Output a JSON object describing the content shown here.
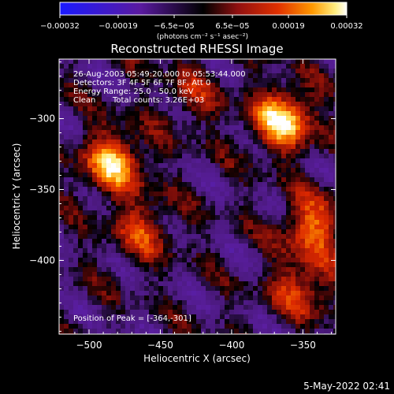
{
  "chart_data": {
    "type": "heatmap",
    "title": "Reconstructed RHESSI Image",
    "xlabel": "Heliocentric X (arcsec)",
    "ylabel": "Heliocentric Y (arcsec)",
    "xlim": [
      -521,
      -327
    ],
    "ylim": [
      -452,
      -258
    ],
    "xticks": [
      -500,
      -450,
      -400,
      -350
    ],
    "yticks": [
      -400,
      -350,
      -300
    ],
    "x_tick_labels": [
      "−500",
      "−450",
      "−400",
      "−350"
    ],
    "y_tick_labels": [
      "−400",
      "−350",
      "−300"
    ],
    "colorbar": {
      "range": [
        -0.00032,
        0.00032
      ],
      "tick_values": [
        -0.00032,
        -0.00019,
        -6.5e-05,
        6.5e-05,
        0.00019,
        0.00032
      ],
      "tick_labels": [
        "−0.00032",
        "−0.00019",
        "−6.5e−05",
        "6.5e−05",
        "0.00019",
        "0.00032"
      ],
      "unit_label": "(photons cm⁻² s⁻¹ asec⁻²)"
    },
    "annotations": {
      "time": "26-Aug-2003 05:49:20.000 to 05:53:44.000",
      "detectors": "Detectors: 3F 4F 5F 6F 7F 8F, Att 0",
      "energy": "Energy Range: 25.0 - 50.0 keV",
      "clean_label": "Clean",
      "counts": "Total counts: 3.26E+03",
      "peak": "Position of Peak = [-364,-301]"
    },
    "peaks": [
      {
        "x": -364,
        "y": -301,
        "value": 0.00032
      },
      {
        "x": -483,
        "y": -331,
        "value": 0.00028
      },
      {
        "x": -343,
        "y": -376,
        "value": 0.00022
      },
      {
        "x": -463,
        "y": -378,
        "value": 0.00016
      },
      {
        "x": -350,
        "y": -419,
        "value": 0.00018
      },
      {
        "x": -428,
        "y": -285,
        "value": 0.0001
      }
    ],
    "grid": false
  },
  "footer": {
    "date": "5-May-2022 02:41"
  }
}
